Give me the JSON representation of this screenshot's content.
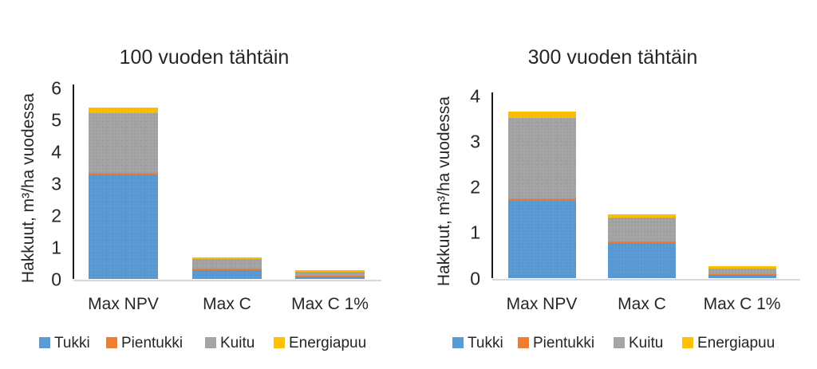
{
  "figure": {
    "background": "#ffffff",
    "text_color": "#262626"
  },
  "chart_data": [
    {
      "type": "bar",
      "stacked": true,
      "title": "100 vuoden tähtäin",
      "ylabel": "Hakkuut, m³/ha vuodessa",
      "xlabel": "",
      "categories": [
        "Max NPV",
        "Max C",
        "Max C 1%"
      ],
      "series": [
        {
          "name": "Tukki",
          "color": "#5B9BD5",
          "values": [
            3.3,
            0.3,
            0.1
          ]
        },
        {
          "name": "Pientukki",
          "color": "#ED7D31",
          "values": [
            0.05,
            0.05,
            0.01
          ]
        },
        {
          "name": "Kuitu",
          "color": "#A5A5A5",
          "values": [
            1.87,
            0.28,
            0.14
          ]
        },
        {
          "name": "Energiapuu",
          "color": "#FFC000",
          "values": [
            0.2,
            0.07,
            0.05
          ]
        }
      ],
      "ylim": [
        0,
        6
      ],
      "ytick_step": 1,
      "grid": false,
      "legend_position": "bottom"
    },
    {
      "type": "bar",
      "stacked": true,
      "title": "300 vuoden tähtäin",
      "ylabel": "Hakkuut, m³/ha vuodessa",
      "xlabel": "",
      "categories": [
        "Max NPV",
        "Max C",
        "Max C 1%"
      ],
      "series": [
        {
          "name": "Tukki",
          "color": "#5B9BD5",
          "values": [
            1.7,
            0.77,
            0.08
          ]
        },
        {
          "name": "Pientukki",
          "color": "#ED7D31",
          "values": [
            0.06,
            0.04,
            0.01
          ]
        },
        {
          "name": "Kuitu",
          "color": "#A5A5A5",
          "values": [
            1.77,
            0.53,
            0.13
          ]
        },
        {
          "name": "Energiapuu",
          "color": "#FFC000",
          "values": [
            0.13,
            0.06,
            0.05
          ]
        }
      ],
      "ylim": [
        0,
        4
      ],
      "ytick_step": 1,
      "grid": false,
      "legend_position": "bottom"
    }
  ]
}
